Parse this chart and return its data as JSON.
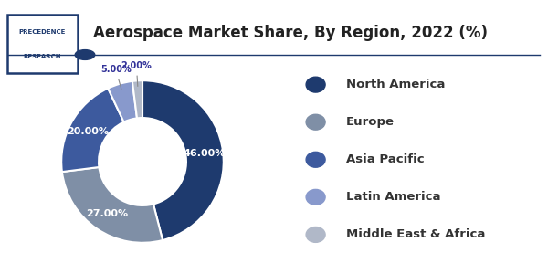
{
  "title": "Aerospace Market Share, By Region, 2022 (%)",
  "slices": [
    46.0,
    27.0,
    20.0,
    5.0,
    2.0
  ],
  "labels": [
    "North America",
    "Europe",
    "Asia Pacific",
    "Latin America",
    "Middle East & Africa"
  ],
  "colors": [
    "#1e3a6e",
    "#7f8fa6",
    "#3d5a9e",
    "#8899cc",
    "#b0b8c8"
  ],
  "pct_labels": [
    "46.00%",
    "27.00%",
    "20.00%",
    "5.00%",
    "2.00%"
  ],
  "title_fontsize": 12,
  "legend_fontsize": 9.5,
  "background_color": "#ffffff",
  "title_color": "#1e3a6e",
  "startangle": 90,
  "logo_text1": "PRECEDENCE",
  "logo_text2": "RESEARCH",
  "logo_border_color": "#1e3a6e",
  "separator_color": "#1e3a6e"
}
